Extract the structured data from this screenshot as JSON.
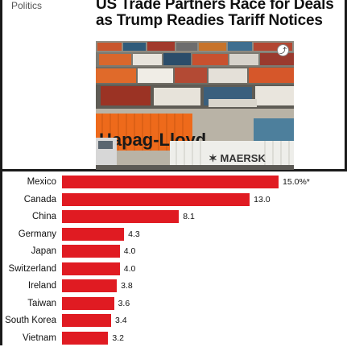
{
  "article": {
    "category": "Politics",
    "headline": "US Trade Partners Race for Deals as Trump Readies Tariff Notices",
    "photo": {
      "subject": "shipping containers",
      "visible_text": [
        "Hapag-Lloyd",
        "MAERSK"
      ]
    },
    "share_icon": "share-icon"
  },
  "chart_data": {
    "type": "bar",
    "orientation": "horizontal",
    "categories": [
      "Mexico",
      "Canada",
      "China",
      "Germany",
      "Japan",
      "Switzerland",
      "Ireland",
      "Taiwan",
      "South Korea",
      "Vietnam"
    ],
    "values": [
      15.0,
      13.0,
      8.1,
      4.3,
      4.0,
      4.0,
      3.8,
      3.6,
      3.4,
      3.2
    ],
    "value_labels": [
      "15.0%*",
      "13.0",
      "8.1",
      "4.3",
      "4.0",
      "4.0",
      "3.8",
      "3.6",
      "3.4",
      "3.2"
    ],
    "bar_color": "#e01b22",
    "xlim": [
      0,
      15.5
    ]
  }
}
